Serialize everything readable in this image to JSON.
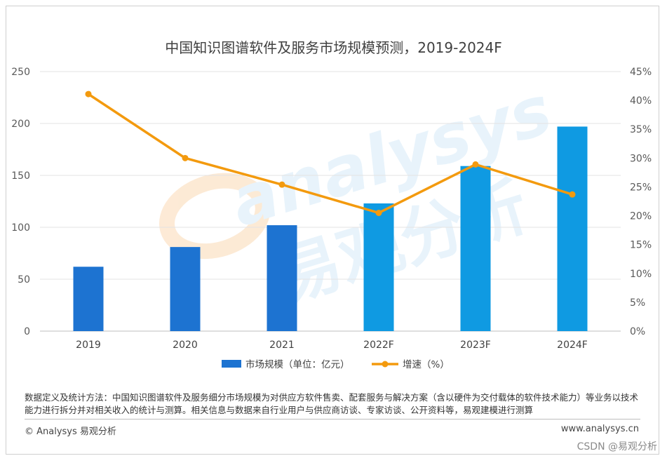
{
  "chart_data": {
    "type": "bar+line",
    "title": "中国知识图谱软件及服务市场规模预测，2019-2024F",
    "categories": [
      "2019",
      "2020",
      "2021",
      "2022F",
      "2023F",
      "2024F"
    ],
    "series": [
      {
        "name": "市场规模（单位：亿元）",
        "type": "bar",
        "axis": "left",
        "values": [
          62,
          81,
          102,
          123,
          159,
          197
        ],
        "colors": [
          "#1d73d1",
          "#1d73d1",
          "#1d73d1",
          "#0f9ae2",
          "#0f9ae2",
          "#0f9ae2"
        ]
      },
      {
        "name": "增速（%）",
        "type": "line",
        "axis": "right",
        "values": [
          41.1,
          30.0,
          25.4,
          20.5,
          28.9,
          23.7
        ],
        "color": "#f39a0e"
      }
    ],
    "y_left": {
      "min": 0,
      "max": 250,
      "ticks": [
        0,
        50,
        100,
        150,
        200,
        250
      ],
      "tick_labels": [
        "0",
        "50",
        "100",
        "150",
        "200",
        "250"
      ]
    },
    "y_right": {
      "min": 0,
      "max": 45,
      "ticks": [
        0,
        5,
        10,
        15,
        20,
        25,
        30,
        35,
        40,
        45
      ],
      "tick_labels": [
        "0%",
        "5%",
        "10%",
        "15%",
        "20%",
        "25%",
        "30%",
        "35%",
        "40%",
        "45%"
      ]
    },
    "legend": {
      "position": "bottom",
      "bar_label": "市场规模（单位：亿元）",
      "line_label": "增速（%）"
    },
    "grid": true
  },
  "footer": {
    "note": "数据定义及统计方法：中国知识图谱软件及服务细分市场规模为对供应方软件售卖、配套服务与解决方案（含以硬件为交付载体的软件技术能力）等业务以技术能力进行拆分并对相关收入的统计与测算。相关信息与数据来自行业用户与供应商访谈、专家访谈、公开资料等，易观建模进行测算",
    "copyright": "© Analysys 易观分析",
    "website": "www.analysys.cn"
  },
  "watermark": {
    "latin": "analysys",
    "chinese": "易观分析"
  },
  "credit": "CSDN @易观分析"
}
